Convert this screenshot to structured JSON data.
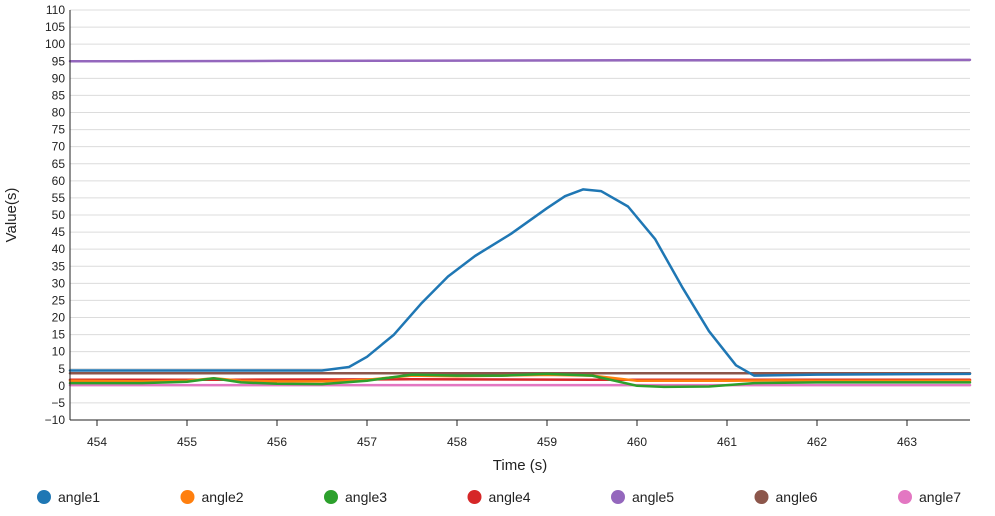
{
  "chart_data": {
    "type": "line",
    "title": "",
    "xlabel": "Time (s)",
    "ylabel": "Value(s)",
    "xlim": [
      453.7,
      463.7
    ],
    "ylim": [
      -10,
      110
    ],
    "x_ticks": [
      454,
      455,
      456,
      457,
      458,
      459,
      460,
      461,
      462,
      463
    ],
    "y_ticks": [
      -10,
      -5,
      0,
      5,
      10,
      15,
      20,
      25,
      30,
      35,
      40,
      45,
      50,
      55,
      60,
      65,
      70,
      75,
      80,
      85,
      90,
      95,
      100,
      105,
      110
    ],
    "grid": "horizontal",
    "legend_position": "bottom",
    "series": [
      {
        "name": "angle1",
        "color": "#1f77b4",
        "x": [
          453.7,
          456.5,
          456.8,
          457.0,
          457.3,
          457.6,
          457.9,
          458.2,
          458.6,
          459.0,
          459.2,
          459.4,
          459.6,
          459.9,
          460.2,
          460.5,
          460.8,
          461.1,
          461.3,
          462.0,
          463.7
        ],
        "y": [
          4.5,
          4.5,
          5.5,
          8.5,
          15,
          24,
          32,
          38,
          44.5,
          52,
          55.5,
          57.5,
          57,
          52.5,
          43,
          29,
          16,
          6,
          3,
          3.3,
          3.5
        ]
      },
      {
        "name": "angle2",
        "color": "#ff7f0e",
        "x": [
          453.7,
          454.5,
          455.0,
          455.3,
          455.6,
          456.0,
          456.5,
          457.0,
          457.5,
          458.0,
          458.5,
          459.0,
          459.5,
          460.0,
          460.5,
          461.0,
          461.5,
          462.0,
          463.0,
          463.7
        ],
        "y": [
          1.5,
          1.3,
          1.5,
          2.2,
          1.5,
          1.3,
          1.3,
          1.8,
          3.0,
          2.8,
          3.0,
          3.2,
          3.0,
          1.5,
          1.5,
          1.5,
          1.6,
          1.5,
          1.5,
          1.5
        ]
      },
      {
        "name": "angle3",
        "color": "#2ca02c",
        "x": [
          453.7,
          454.5,
          455.0,
          455.3,
          455.6,
          456.0,
          456.5,
          457.0,
          457.5,
          458.0,
          458.5,
          459.0,
          459.5,
          460.0,
          460.3,
          460.8,
          461.3,
          462.0,
          463.0,
          463.7
        ],
        "y": [
          0.8,
          0.8,
          1.2,
          2.2,
          1.0,
          0.6,
          0.5,
          1.5,
          3.3,
          3.0,
          3.0,
          3.5,
          3.0,
          0.0,
          -0.3,
          -0.2,
          0.8,
          1.0,
          1.0,
          1.0
        ]
      },
      {
        "name": "angle4",
        "color": "#d62728",
        "x": [
          453.7,
          455.5,
          457.5,
          459.5,
          461.5,
          463.7
        ],
        "y": [
          1.8,
          1.8,
          1.9,
          1.8,
          1.8,
          1.8
        ]
      },
      {
        "name": "angle5",
        "color": "#9467bd",
        "x": [
          453.7,
          456.0,
          458.0,
          460.0,
          462.0,
          463.7
        ],
        "y": [
          95.0,
          95.1,
          95.2,
          95.3,
          95.3,
          95.4
        ]
      },
      {
        "name": "angle6",
        "color": "#8c564b",
        "x": [
          453.7,
          457.0,
          460.0,
          463.7
        ],
        "y": [
          3.7,
          3.7,
          3.7,
          3.7
        ]
      },
      {
        "name": "angle7",
        "color": "#e377c2",
        "x": [
          453.7,
          457.0,
          460.0,
          463.7
        ],
        "y": [
          0.2,
          0.2,
          0.2,
          0.2
        ]
      }
    ]
  }
}
